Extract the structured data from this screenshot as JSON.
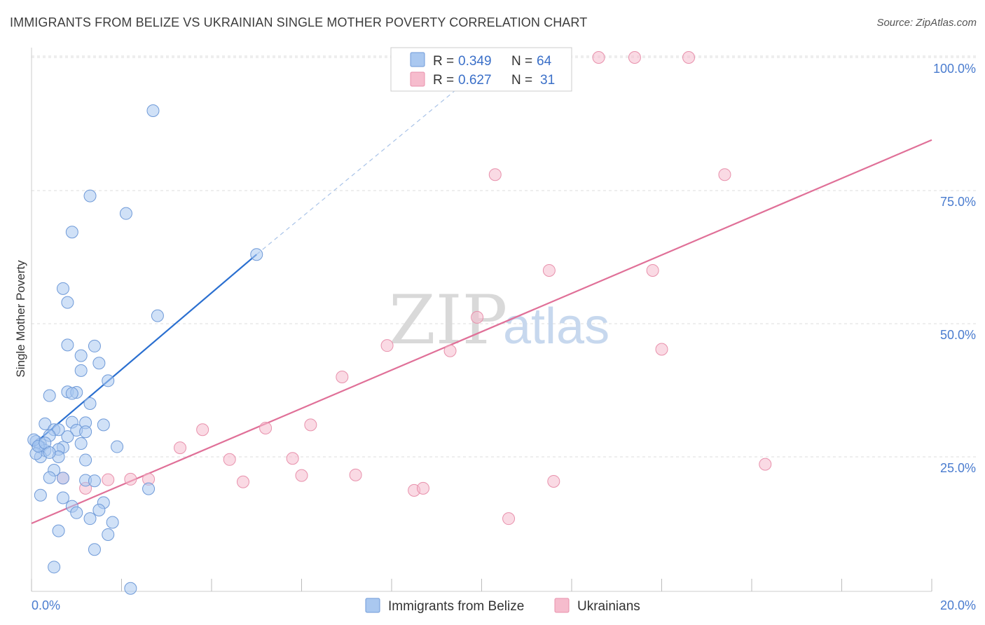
{
  "header": {
    "title": "IMMIGRANTS FROM BELIZE VS UKRAINIAN SINGLE MOTHER POVERTY CORRELATION CHART",
    "source": "Source: ZipAtlas.com"
  },
  "watermark": {
    "zip": "ZIP",
    "atlas": "atlas"
  },
  "colors": {
    "blue_fill": "#aac8f0",
    "blue_stroke": "#6f9ad8",
    "blue_line": "#2a6fd0",
    "pink_fill": "#f6bccd",
    "pink_stroke": "#e891ac",
    "pink_line": "#e07098",
    "grid": "#dddddd"
  },
  "chart_data": {
    "type": "scatter",
    "title": "IMMIGRANTS FROM BELIZE VS UKRAINIAN SINGLE MOTHER POVERTY CORRELATION CHART",
    "xlabel": "",
    "ylabel": "Single Mother Poverty",
    "xlim": [
      0,
      20
    ],
    "ylim": [
      0,
      100
    ],
    "x_tick_labels": [
      "0.0%",
      "20.0%"
    ],
    "y_ticks": [
      25,
      50,
      75,
      100
    ],
    "y_tick_labels": [
      "25.0%",
      "50.0%",
      "75.0%",
      "100.0%"
    ],
    "grid": true,
    "legend_position": "top-center",
    "series": [
      {
        "name": "Immigrants from Belize",
        "R": "0.349",
        "N": "64",
        "trend": {
          "x": [
            0.0,
            5.0
          ],
          "y": [
            27.0,
            63.0
          ],
          "dashed_extension_to": [
            10.3,
            100
          ]
        },
        "points": [
          [
            2.7,
            90.0
          ],
          [
            1.3,
            74.0
          ],
          [
            2.1,
            70.7
          ],
          [
            0.9,
            67.2
          ],
          [
            0.7,
            56.6
          ],
          [
            0.8,
            54.0
          ],
          [
            2.8,
            51.5
          ],
          [
            0.8,
            46.0
          ],
          [
            1.4,
            45.8
          ],
          [
            1.1,
            44.0
          ],
          [
            1.5,
            42.6
          ],
          [
            1.1,
            41.2
          ],
          [
            1.7,
            39.3
          ],
          [
            0.8,
            37.2
          ],
          [
            1.0,
            37.1
          ],
          [
            0.4,
            36.5
          ],
          [
            0.9,
            36.9
          ],
          [
            1.3,
            35.0
          ],
          [
            0.9,
            31.5
          ],
          [
            1.2,
            31.4
          ],
          [
            0.3,
            31.2
          ],
          [
            1.6,
            31.0
          ],
          [
            0.5,
            30.1
          ],
          [
            1.0,
            30.0
          ],
          [
            0.8,
            28.8
          ],
          [
            1.2,
            29.7
          ],
          [
            0.6,
            30.1
          ],
          [
            0.4,
            29.0
          ],
          [
            0.1,
            27.9
          ],
          [
            0.2,
            27.4
          ],
          [
            1.1,
            27.5
          ],
          [
            0.7,
            26.8
          ],
          [
            0.6,
            26.4
          ],
          [
            1.9,
            26.9
          ],
          [
            0.2,
            26.8
          ],
          [
            0.3,
            26.2
          ],
          [
            0.6,
            25.0
          ],
          [
            0.2,
            25.0
          ],
          [
            1.2,
            24.4
          ],
          [
            0.5,
            22.5
          ],
          [
            0.4,
            21.1
          ],
          [
            0.7,
            21.0
          ],
          [
            1.2,
            20.6
          ],
          [
            1.4,
            20.5
          ],
          [
            2.6,
            19.0
          ],
          [
            0.2,
            17.8
          ],
          [
            0.7,
            17.3
          ],
          [
            1.6,
            16.4
          ],
          [
            0.9,
            15.7
          ],
          [
            1.0,
            14.5
          ],
          [
            1.5,
            15.0
          ],
          [
            1.3,
            13.4
          ],
          [
            1.8,
            12.7
          ],
          [
            0.6,
            11.1
          ],
          [
            1.7,
            10.4
          ],
          [
            1.4,
            7.6
          ],
          [
            0.5,
            4.3
          ],
          [
            2.2,
            0.3
          ],
          [
            0.05,
            28.2
          ],
          [
            0.1,
            25.6
          ],
          [
            0.15,
            27.0
          ],
          [
            0.3,
            27.6
          ],
          [
            0.4,
            25.8
          ],
          [
            5.0,
            63.0
          ]
        ]
      },
      {
        "name": "Ukrainians",
        "R": "0.627",
        "N": "31",
        "trend": {
          "x": [
            0.0,
            20.0
          ],
          "y": [
            12.5,
            84.5
          ]
        },
        "points": [
          [
            12.6,
            100.0
          ],
          [
            13.4,
            100.0
          ],
          [
            14.6,
            100.0
          ],
          [
            10.3,
            78.0
          ],
          [
            15.4,
            78.0
          ],
          [
            11.5,
            60.0
          ],
          [
            13.8,
            60.0
          ],
          [
            9.9,
            51.2
          ],
          [
            7.9,
            45.9
          ],
          [
            9.3,
            44.9
          ],
          [
            14.0,
            45.2
          ],
          [
            6.9,
            40.0
          ],
          [
            5.2,
            30.4
          ],
          [
            3.8,
            30.1
          ],
          [
            6.2,
            31.0
          ],
          [
            3.3,
            26.7
          ],
          [
            4.4,
            24.5
          ],
          [
            5.8,
            24.7
          ],
          [
            6.0,
            21.5
          ],
          [
            7.2,
            21.6
          ],
          [
            0.7,
            21.0
          ],
          [
            2.2,
            20.8
          ],
          [
            2.6,
            20.8
          ],
          [
            1.7,
            20.7
          ],
          [
            4.7,
            20.3
          ],
          [
            1.2,
            19.1
          ],
          [
            8.5,
            18.7
          ],
          [
            8.7,
            19.1
          ],
          [
            11.6,
            20.4
          ],
          [
            16.3,
            23.6
          ],
          [
            10.6,
            13.4
          ]
        ]
      }
    ]
  }
}
